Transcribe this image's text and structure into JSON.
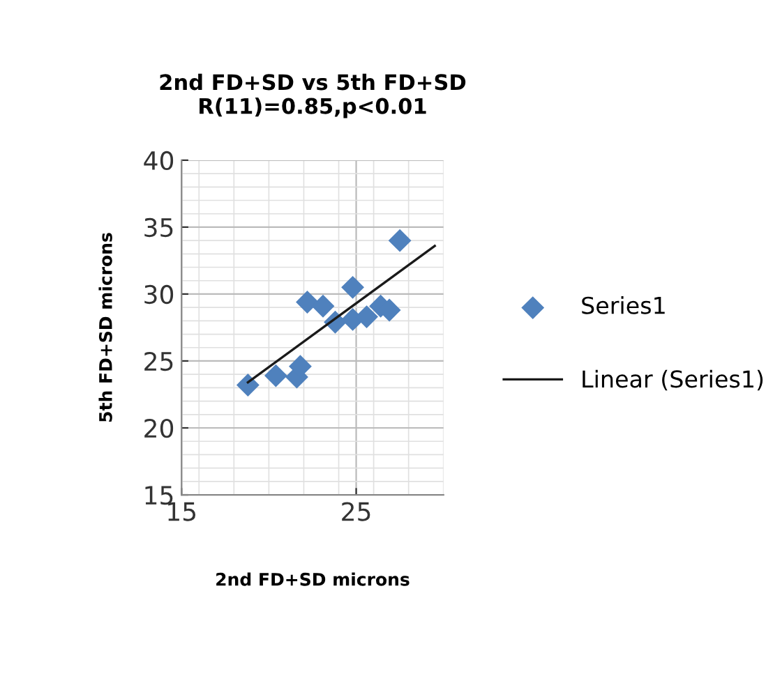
{
  "chart_data": {
    "type": "scatter",
    "title": "2nd FD+SD vs 5th FD+SD\nR(11)=0.85,p<0.01",
    "xlabel": "2nd FD+SD microns",
    "ylabel": "5th FD+SD microns",
    "xlim": [
      15,
      30
    ],
    "xticks": [
      15,
      25
    ],
    "ylim": [
      15,
      40
    ],
    "yticks": [
      15,
      20,
      25,
      30,
      35,
      40
    ],
    "grid": true,
    "legend": "right",
    "marker": "diamond",
    "series": [
      {
        "name": "Series1",
        "color": "#4f81bd",
        "x": [
          18.8,
          20.4,
          21.6,
          21.8,
          22.2,
          23.1,
          23.8,
          24.8,
          24.8,
          25.6,
          26.4,
          26.9,
          27.5
        ],
        "values": [
          23.2,
          23.9,
          23.8,
          24.6,
          29.4,
          29.1,
          27.9,
          30.5,
          28.1,
          28.3,
          29.1,
          28.8,
          34.0
        ]
      },
      {
        "name": "Linear (Series1)",
        "type": "line",
        "color": "#1a1a1a",
        "marker": "none",
        "x": [
          18.8,
          29.5
        ],
        "values": [
          23.4,
          33.6
        ]
      }
    ]
  }
}
